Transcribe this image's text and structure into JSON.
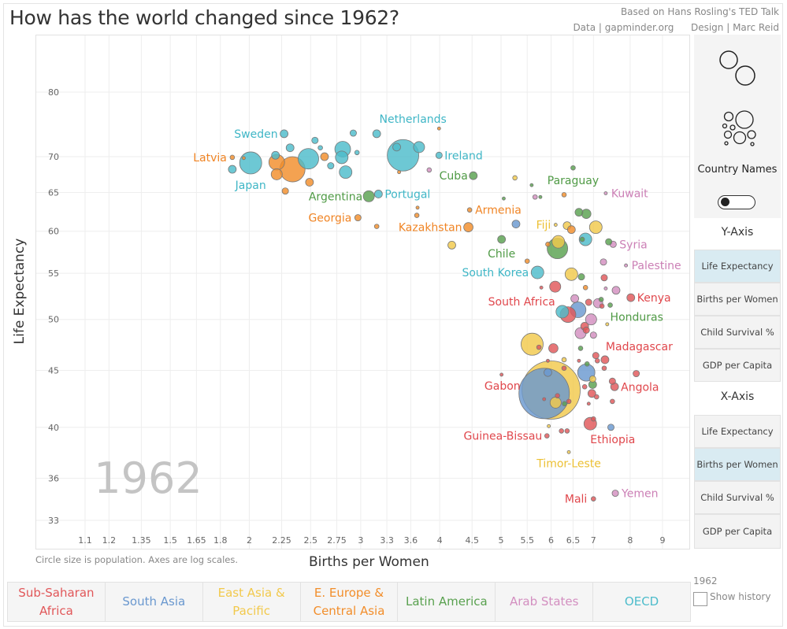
{
  "header": {
    "title": "How has the world changed since 1962?",
    "credit_line1": "Based on Hans Rosling's TED Talk",
    "credit_data": "Data | gapminder.org",
    "credit_design": "Design | Marc Reid"
  },
  "controls": {
    "country_names_label": "Country Names",
    "country_names_on": false,
    "y_axis_heading": "Y-Axis",
    "x_axis_heading": "X-Axis",
    "y_options": [
      "Life Expectancy",
      "Births per Women",
      "Child Survival %",
      "GDP per Capita"
    ],
    "y_selected": "Life Expectancy",
    "x_options": [
      "Life Expectancy",
      "Births per Women",
      "Child Survival %",
      "GDP per Capita"
    ],
    "x_selected": "Births per Women",
    "year": "1962",
    "show_history_label": "Show history",
    "show_history_checked": false
  },
  "legend": [
    {
      "label": "Sub-Saharan Africa",
      "color": "#e15759"
    },
    {
      "label": "South Asia",
      "color": "#6a98cf"
    },
    {
      "label": "East Asia & Pacific",
      "color": "#f2c94c"
    },
    {
      "label": "E. Europe & Central Asia",
      "color": "#f28e2b"
    },
    {
      "label": "Latin America",
      "color": "#59a14f"
    },
    {
      "label": "Arab States",
      "color": "#d38fc0"
    },
    {
      "label": "OECD",
      "color": "#4dbccb"
    }
  ],
  "chart_data": {
    "type": "scatter",
    "year_watermark": "1962",
    "xlabel": "Births per Women",
    "ylabel": "Life Expectancy",
    "note": "Circle size is population.  Axes are log scales.",
    "x_scale": "log",
    "y_scale": "log",
    "xlim": [
      1.1,
      9
    ],
    "ylim": [
      33,
      80
    ],
    "grid": true,
    "x_ticks": [
      "1.1",
      "1.2",
      "1.35",
      "1.5",
      "1.65",
      "1.8",
      "2",
      "2.25",
      "2.5",
      "2.75",
      "3",
      "3.3",
      "3.6",
      "4",
      "4.5",
      "5",
      "5.5",
      "6",
      "6.5",
      "7",
      "8",
      "9"
    ],
    "y_ticks": [
      "33",
      "36",
      "40",
      "45",
      "50",
      "55",
      "60",
      "65",
      "70",
      "80"
    ],
    "point_fields": [
      "country",
      "births_per_woman",
      "life_expectancy",
      "population_millions",
      "region_index"
    ],
    "points": [
      [
        "Sweden",
        2.27,
        73.4,
        12,
        6
      ],
      [
        "Netherlands",
        3.18,
        73.4,
        12,
        6
      ],
      [
        "Latvia",
        1.88,
        69.9,
        4,
        3
      ],
      [
        "Japan",
        2.01,
        69.1,
        95,
        6
      ],
      [
        "Ireland",
        3.99,
        70.2,
        8,
        6
      ],
      [
        "Cuba",
        4.52,
        67.3,
        12,
        4
      ],
      [
        "Argentina",
        3.09,
        64.5,
        24,
        4
      ],
      [
        "Portugal",
        3.2,
        64.8,
        12,
        6
      ],
      [
        "Georgia",
        2.97,
        61.7,
        8,
        3
      ],
      [
        "Kazakhstan",
        4.44,
        60.5,
        17,
        3
      ],
      [
        "Armenia",
        4.46,
        62.7,
        4,
        3
      ],
      [
        "Paraguay",
        6.5,
        68.4,
        4,
        4
      ],
      [
        "Kuwait",
        7.32,
        64.9,
        1,
        5
      ],
      [
        "Fiji",
        6.1,
        60.8,
        1,
        2
      ],
      [
        "Syria",
        7.52,
        58.4,
        8,
        5
      ],
      [
        "Chile",
        5.01,
        59.0,
        12,
        4
      ],
      [
        "Palestine",
        7.88,
        55.9,
        2,
        5
      ],
      [
        "South Korea",
        5.71,
        55.1,
        31,
        6
      ],
      [
        "South Africa",
        6.09,
        53.5,
        24,
        0
      ],
      [
        "Kenya",
        8.02,
        52.3,
        12,
        0
      ],
      [
        "Honduras",
        7.44,
        51.5,
        4,
        4
      ],
      [
        "Madagascar",
        7.3,
        46.0,
        12,
        0
      ],
      [
        "Gabon",
        5.01,
        44.6,
        2,
        0
      ],
      [
        "Angola",
        7.56,
        43.5,
        12,
        0
      ],
      [
        "Guinea-Bissau",
        5.91,
        39.3,
        4,
        0
      ],
      [
        "Ethiopia",
        6.92,
        40.3,
        31,
        0
      ],
      [
        "Timor-Leste",
        6.4,
        38.0,
        2,
        2
      ],
      [
        "Mali",
        7.0,
        34.5,
        4,
        0
      ],
      [
        "Yemen",
        7.58,
        34.9,
        8,
        5
      ],
      [
        "",
        6.0,
        43.2,
        660,
        2
      ],
      [
        "",
        5.85,
        42.9,
        495,
        1
      ],
      [
        "",
        5.6,
        47.5,
        95,
        2
      ],
      [
        "",
        6.14,
        57.9,
        82,
        4
      ],
      [
        "",
        6.82,
        44.8,
        58,
        1
      ],
      [
        "",
        6.62,
        51.0,
        48,
        1
      ],
      [
        "",
        6.38,
        50.5,
        48,
        0
      ],
      [
        "",
        6.25,
        50.8,
        31,
        6
      ],
      [
        "",
        6.94,
        50.0,
        24,
        5
      ],
      [
        "",
        3.5,
        70.2,
        193,
        6
      ],
      [
        "",
        2.48,
        69.7,
        82,
        6
      ],
      [
        "",
        2.81,
        71.1,
        48,
        6
      ],
      [
        "",
        2.8,
        69.9,
        31,
        6
      ],
      [
        "",
        2.84,
        67.8,
        31,
        6
      ],
      [
        "",
        2.34,
        68.2,
        124,
        3
      ],
      [
        "",
        2.21,
        69.2,
        48,
        3
      ],
      [
        "",
        2.21,
        67.5,
        24,
        3
      ],
      [
        "",
        2.49,
        66.4,
        12,
        3
      ],
      [
        "",
        2.28,
        65.2,
        8,
        3
      ],
      [
        "",
        2.63,
        70.0,
        12,
        3
      ],
      [
        "",
        3.71,
        71.4,
        24,
        6
      ],
      [
        "",
        3.42,
        71.4,
        12,
        6
      ],
      [
        "",
        2.92,
        73.5,
        8,
        6
      ],
      [
        "",
        2.54,
        72.4,
        8,
        6
      ],
      [
        "",
        2.59,
        71.3,
        4,
        6
      ],
      [
        "",
        2.32,
        71.3,
        12,
        6
      ],
      [
        "",
        2.2,
        70.2,
        12,
        6
      ],
      [
        "",
        1.88,
        68.2,
        12,
        6
      ],
      [
        "",
        2.96,
        70.6,
        4,
        6
      ],
      [
        "",
        2.69,
        68.7,
        8,
        6
      ],
      [
        "",
        1.96,
        69.8,
        2,
        3
      ],
      [
        "",
        3.85,
        68.1,
        4,
        5
      ],
      [
        "",
        3.99,
        74.2,
        1,
        3
      ],
      [
        "",
        3.69,
        63.0,
        2,
        3
      ],
      [
        "",
        3.68,
        62.0,
        4,
        3
      ],
      [
        "",
        3.18,
        60.6,
        4,
        3
      ],
      [
        "",
        3.45,
        67.8,
        2,
        3
      ],
      [
        "",
        4.18,
        58.3,
        12,
        2
      ],
      [
        "",
        5.26,
        67.0,
        4,
        2
      ],
      [
        "",
        5.59,
        66.0,
        2,
        4
      ],
      [
        "",
        5.66,
        64.4,
        4,
        5
      ],
      [
        "",
        5.77,
        64.4,
        2,
        4
      ],
      [
        "",
        6.29,
        64.7,
        4,
        3
      ],
      [
        "",
        5.05,
        64.2,
        2,
        4
      ],
      [
        "",
        5.28,
        60.9,
        12,
        1
      ],
      [
        "",
        6.64,
        62.4,
        12,
        4
      ],
      [
        "",
        6.82,
        62.2,
        17,
        4
      ],
      [
        "",
        6.36,
        60.7,
        12,
        2
      ],
      [
        "",
        6.46,
        60.2,
        12,
        3
      ],
      [
        "",
        7.06,
        60.5,
        31,
        2
      ],
      [
        "",
        6.8,
        59.0,
        31,
        6
      ],
      [
        "",
        6.72,
        59.0,
        4,
        4
      ],
      [
        "",
        6.16,
        58.7,
        31,
        2
      ],
      [
        "",
        5.93,
        58.4,
        4,
        3
      ],
      [
        "",
        7.4,
        58.7,
        8,
        4
      ],
      [
        "",
        5.5,
        56.4,
        4,
        3
      ],
      [
        "",
        7.26,
        56.3,
        8,
        5
      ],
      [
        "",
        6.46,
        54.9,
        31,
        2
      ],
      [
        "",
        6.7,
        54.6,
        8,
        4
      ],
      [
        "",
        7.28,
        54.5,
        8,
        0
      ],
      [
        "",
        5.79,
        53.4,
        2,
        0
      ],
      [
        "",
        6.8,
        53.4,
        4,
        3
      ],
      [
        "",
        7.6,
        53.1,
        12,
        5
      ],
      [
        "",
        7.32,
        53.3,
        2,
        5
      ],
      [
        "",
        6.54,
        52.2,
        12,
        5
      ],
      [
        "",
        6.88,
        51.8,
        8,
        0
      ],
      [
        "",
        7.12,
        51.7,
        17,
        5
      ],
      [
        "",
        7.22,
        51.4,
        4,
        0
      ],
      [
        "",
        7.2,
        52.1,
        4,
        4
      ],
      [
        "",
        6.78,
        49.3,
        12,
        0
      ],
      [
        "",
        6.68,
        48.6,
        24,
        5
      ],
      [
        "",
        6.82,
        48.9,
        8,
        0
      ],
      [
        "",
        7.0,
        48.4,
        8,
        5
      ],
      [
        "",
        7.36,
        49.5,
        2,
        2
      ],
      [
        "",
        5.74,
        47.2,
        4,
        0
      ],
      [
        "",
        6.05,
        47.1,
        17,
        0
      ],
      [
        "",
        6.68,
        47.1,
        4,
        4
      ],
      [
        "",
        7.06,
        46.4,
        8,
        0
      ],
      [
        "",
        7.1,
        45.9,
        4,
        0
      ],
      [
        "",
        6.64,
        45.9,
        2,
        0
      ],
      [
        "",
        6.84,
        45.6,
        4,
        4
      ],
      [
        "",
        5.93,
        44.8,
        12,
        1
      ],
      [
        "",
        6.29,
        46.0,
        4,
        2
      ],
      [
        "",
        5.93,
        45.9,
        2,
        0
      ],
      [
        "",
        6.29,
        45.2,
        4,
        0
      ],
      [
        "",
        7.28,
        45.2,
        4,
        0
      ],
      [
        "",
        8.18,
        44.7,
        8,
        0
      ],
      [
        "",
        6.98,
        44.2,
        8,
        2
      ],
      [
        "",
        6.98,
        43.7,
        12,
        4
      ],
      [
        "",
        6.78,
        43.5,
        4,
        0
      ],
      [
        "",
        7.5,
        44.0,
        8,
        0
      ],
      [
        "",
        6.96,
        42.9,
        12,
        0
      ],
      [
        "",
        7.08,
        42.6,
        4,
        0
      ],
      [
        "",
        6.14,
        42.7,
        4,
        0
      ],
      [
        "",
        6.1,
        42.1,
        24,
        2
      ],
      [
        "",
        6.3,
        42.0,
        4,
        4
      ],
      [
        "",
        6.4,
        42.2,
        4,
        0
      ],
      [
        "",
        5.85,
        42.4,
        2,
        0
      ],
      [
        "",
        7.5,
        42.2,
        4,
        0
      ],
      [
        "",
        6.88,
        42.0,
        2,
        0
      ],
      [
        "",
        7.0,
        40.7,
        4,
        0
      ],
      [
        "",
        7.46,
        40.0,
        8,
        1
      ],
      [
        "",
        5.95,
        40.1,
        2,
        2
      ],
      [
        "",
        6.23,
        39.7,
        4,
        0
      ],
      [
        "",
        6.36,
        39.7,
        4,
        0
      ]
    ]
  }
}
